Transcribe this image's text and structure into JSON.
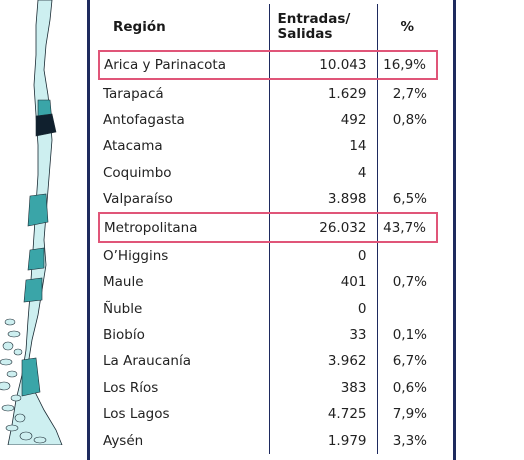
{
  "colors": {
    "frame": "#1e2a5e",
    "highlight": "#e05578",
    "map_light": "#cdeff0",
    "map_mid": "#3aa5a8",
    "map_dark": "#10202e"
  },
  "icons": [
    "chile-map-icon"
  ],
  "chart_data": {
    "type": "table",
    "columns": [
      "Región",
      "Entradas/ Salidas",
      "%"
    ],
    "rows": [
      {
        "region": "Arica y Parinacota",
        "entradas": "10.043",
        "pct": "16,9%",
        "highlight": true,
        "shade": "light"
      },
      {
        "region": "Tarapacá",
        "entradas": "1.629",
        "pct": "2,7%",
        "highlight": false,
        "shade": "light"
      },
      {
        "region": "Antofagasta",
        "entradas": "492",
        "pct": "0,8%",
        "highlight": false,
        "shade": "mid"
      },
      {
        "region": "Atacama",
        "entradas": "14",
        "pct": "",
        "highlight": false,
        "shade": "dark"
      },
      {
        "region": "Coquimbo",
        "entradas": "4",
        "pct": "",
        "highlight": false,
        "shade": "light"
      },
      {
        "region": "Valparaíso",
        "entradas": "3.898",
        "pct": "6,5%",
        "highlight": false,
        "shade": "light"
      },
      {
        "region": "Metropolitana",
        "entradas": "26.032",
        "pct": "43,7%",
        "highlight": true,
        "shade": "mid"
      },
      {
        "region": "O’Higgins",
        "entradas": "0",
        "pct": "",
        "highlight": false,
        "shade": "light"
      },
      {
        "region": "Maule",
        "entradas": "401",
        "pct": "0,7%",
        "highlight": false,
        "shade": "light"
      },
      {
        "region": "Ñuble",
        "entradas": "0",
        "pct": "",
        "highlight": false,
        "shade": "light"
      },
      {
        "region": "Biobío",
        "entradas": "33",
        "pct": "0,1%",
        "highlight": false,
        "shade": "mid"
      },
      {
        "region": "La Araucanía",
        "entradas": "3.962",
        "pct": "6,7%",
        "highlight": false,
        "shade": "mid"
      },
      {
        "region": "Los Ríos",
        "entradas": "383",
        "pct": "0,6%",
        "highlight": false,
        "shade": "light"
      },
      {
        "region": "Los Lagos",
        "entradas": "4.725",
        "pct": "7,9%",
        "highlight": false,
        "shade": "light"
      },
      {
        "region": "Aysén",
        "entradas": "1.979",
        "pct": "3,3%",
        "highlight": false,
        "shade": "mid"
      }
    ]
  }
}
